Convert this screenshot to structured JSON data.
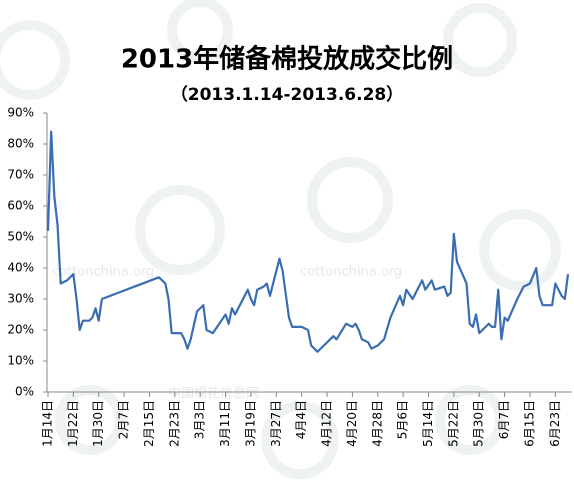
{
  "chart_data": {
    "type": "line",
    "title": "2013年储备棉投放成交比例",
    "subtitle": "（2013.1.14-2013.6.28）",
    "watermarks": [
      "cottonchina.org",
      "cottonchina.org",
      "中国棉花信息网"
    ],
    "x": [
      0,
      1,
      2,
      3,
      4,
      6,
      8,
      9,
      10,
      11,
      13,
      14,
      15,
      16,
      17,
      35,
      37,
      38,
      39,
      42,
      43,
      44,
      45,
      47,
      49,
      50,
      52,
      56,
      57,
      58,
      59,
      63,
      64,
      65,
      66,
      68,
      69,
      70,
      73,
      74,
      76,
      77,
      80,
      82,
      83,
      85,
      87,
      90,
      91,
      94,
      96,
      97,
      98,
      99,
      101,
      102,
      104,
      106,
      108,
      111,
      112,
      113,
      115,
      118,
      119,
      121,
      122,
      125,
      126,
      127,
      128,
      129,
      132,
      133,
      134,
      135,
      136,
      139,
      140,
      141,
      142,
      143,
      144,
      145,
      148,
      150,
      152,
      154,
      155,
      156,
      159,
      160,
      162,
      163,
      164
    ],
    "series": [
      {
        "name": "成交比例",
        "color": "#3b6db3",
        "values": [
          52,
          84,
          63,
          54,
          35,
          36,
          38,
          30,
          20,
          23,
          23,
          24,
          27,
          23,
          30,
          37,
          35,
          30,
          19,
          19,
          17,
          14,
          17,
          26,
          28,
          20,
          19,
          25,
          22,
          27,
          25,
          33,
          30,
          28,
          33,
          34,
          35,
          31,
          43,
          39,
          24,
          21,
          21,
          20,
          15,
          13,
          15,
          18,
          17,
          22,
          21,
          22,
          20,
          17,
          16,
          14,
          15,
          17,
          24,
          31,
          28,
          33,
          30,
          36,
          33,
          36,
          33,
          34,
          31,
          32,
          51,
          42,
          35,
          22,
          21,
          25,
          19,
          22,
          21,
          21,
          33,
          17,
          24,
          23,
          30,
          34,
          35,
          40,
          31,
          28,
          28,
          35,
          31,
          30,
          38
        ]
      }
    ],
    "xlim": [
      0,
      164
    ],
    "xticks": [
      {
        "value": 0,
        "label": "1月14日"
      },
      {
        "value": 8,
        "label": "1月22日"
      },
      {
        "value": 16,
        "label": "1月30日"
      },
      {
        "value": 24,
        "label": "2月7日"
      },
      {
        "value": 32,
        "label": "2月15日"
      },
      {
        "value": 40,
        "label": "2月23日"
      },
      {
        "value": 48,
        "label": "3月3日"
      },
      {
        "value": 56,
        "label": "3月11日"
      },
      {
        "value": 64,
        "label": "3月19日"
      },
      {
        "value": 72,
        "label": "3月27日"
      },
      {
        "value": 80,
        "label": "4月4日"
      },
      {
        "value": 88,
        "label": "4月12日"
      },
      {
        "value": 96,
        "label": "4月20日"
      },
      {
        "value": 104,
        "label": "4月28日"
      },
      {
        "value": 112,
        "label": "5月6日"
      },
      {
        "value": 120,
        "label": "5月14日"
      },
      {
        "value": 128,
        "label": "5月22日"
      },
      {
        "value": 136,
        "label": "5月30日"
      },
      {
        "value": 144,
        "label": "6月7日"
      },
      {
        "value": 152,
        "label": "6月15日"
      },
      {
        "value": 160,
        "label": "6月23日"
      }
    ],
    "ylim": [
      0,
      90
    ],
    "yticks": [
      {
        "value": 0,
        "label": "0%"
      },
      {
        "value": 10,
        "label": "10%"
      },
      {
        "value": 20,
        "label": "20%"
      },
      {
        "value": 30,
        "label": "30%"
      },
      {
        "value": 40,
        "label": "40%"
      },
      {
        "value": 50,
        "label": "50%"
      },
      {
        "value": 60,
        "label": "60%"
      },
      {
        "value": 70,
        "label": "70%"
      },
      {
        "value": 80,
        "label": "80%"
      },
      {
        "value": 90,
        "label": "90%"
      }
    ],
    "grid": false
  }
}
